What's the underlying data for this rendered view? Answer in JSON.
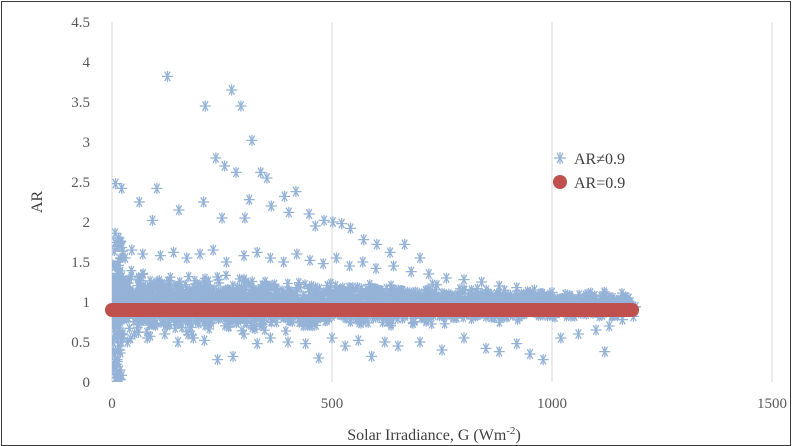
{
  "chart_data": {
    "type": "scatter",
    "title": "",
    "xlabel": "Solar Irradiance, G (Wm",
    "xlabel_sup": "-2",
    "xlabel_end": ")",
    "ylabel": "AR",
    "xlim": [
      0,
      1500
    ],
    "ylim": [
      0,
      4.5
    ],
    "x_ticks": [
      0,
      500,
      1000,
      1500
    ],
    "y_ticks": [
      0,
      0.5,
      1,
      1.5,
      2,
      2.5,
      3,
      3.5,
      4,
      4.5
    ],
    "y_tick_labels": [
      "0",
      "0.5",
      "1",
      "1.5",
      "2",
      "2.5",
      "3",
      "3.5",
      "4",
      "4.5"
    ],
    "grid": "vertical",
    "legend_position": "right",
    "series": [
      {
        "name": "AR≠0.9",
        "marker": "asterisk",
        "color": "#95b3d7",
        "points": [
          [
            126,
            3.82
          ],
          [
            272,
            3.65
          ],
          [
            212,
            3.45
          ],
          [
            293,
            3.45
          ],
          [
            318,
            3.02
          ],
          [
            236,
            2.8
          ],
          [
            256,
            2.7
          ],
          [
            282,
            2.62
          ],
          [
            338,
            2.62
          ],
          [
            352,
            2.55
          ],
          [
            8,
            2.48
          ],
          [
            22,
            2.42
          ],
          [
            102,
            2.42
          ],
          [
            418,
            2.38
          ],
          [
            392,
            2.32
          ],
          [
            312,
            2.28
          ],
          [
            208,
            2.25
          ],
          [
            62,
            2.25
          ],
          [
            152,
            2.15
          ],
          [
            362,
            2.2
          ],
          [
            402,
            2.12
          ],
          [
            448,
            2.1
          ],
          [
            302,
            2.05
          ],
          [
            250,
            2.05
          ],
          [
            92,
            2.02
          ],
          [
            482,
            2.02
          ],
          [
            502,
            2.0
          ],
          [
            522,
            1.98
          ],
          [
            462,
            1.95
          ],
          [
            542,
            1.92
          ],
          [
            572,
            1.78
          ],
          [
            602,
            1.72
          ],
          [
            665,
            1.72
          ],
          [
            632,
            1.62
          ],
          [
            700,
            1.55
          ],
          [
            7,
            1.86
          ],
          [
            15,
            1.8
          ],
          [
            12,
            1.7
          ],
          [
            30,
            1.55
          ],
          [
            45,
            1.65
          ],
          [
            70,
            1.6
          ],
          [
            110,
            1.58
          ],
          [
            140,
            1.62
          ],
          [
            170,
            1.55
          ],
          [
            200,
            1.6
          ],
          [
            230,
            1.65
          ],
          [
            260,
            1.5
          ],
          [
            300,
            1.58
          ],
          [
            330,
            1.62
          ],
          [
            360,
            1.55
          ],
          [
            390,
            1.5
          ],
          [
            420,
            1.6
          ],
          [
            450,
            1.52
          ],
          [
            480,
            1.48
          ],
          [
            510,
            1.55
          ],
          [
            540,
            1.45
          ],
          [
            570,
            1.5
          ],
          [
            600,
            1.42
          ],
          [
            640,
            1.45
          ],
          [
            680,
            1.38
          ],
          [
            720,
            1.35
          ],
          [
            760,
            1.3
          ],
          [
            800,
            1.28
          ],
          [
            840,
            1.25
          ],
          [
            880,
            1.2
          ],
          [
            920,
            1.18
          ],
          [
            960,
            1.15
          ],
          [
            1000,
            1.12
          ],
          [
            1040,
            1.08
          ],
          [
            1080,
            1.06
          ],
          [
            1120,
            1.1
          ],
          [
            1150,
            1.0
          ],
          [
            1170,
            0.97
          ],
          [
            1190,
            0.94
          ],
          [
            5,
            0.2
          ],
          [
            8,
            0.05
          ],
          [
            10,
            0.1
          ],
          [
            5,
            0.35
          ],
          [
            12,
            0.28
          ],
          [
            15,
            0.45
          ],
          [
            18,
            0.4
          ],
          [
            25,
            0.55
          ],
          [
            20,
            0.6
          ],
          [
            35,
            0.5
          ],
          [
            60,
            0.62
          ],
          [
            80,
            0.55
          ],
          [
            120,
            0.6
          ],
          [
            150,
            0.5
          ],
          [
            185,
            0.55
          ],
          [
            210,
            0.52
          ],
          [
            240,
            0.28
          ],
          [
            275,
            0.32
          ],
          [
            300,
            0.6
          ],
          [
            330,
            0.48
          ],
          [
            360,
            0.55
          ],
          [
            400,
            0.5
          ],
          [
            440,
            0.48
          ],
          [
            470,
            0.3
          ],
          [
            500,
            0.55
          ],
          [
            530,
            0.45
          ],
          [
            560,
            0.52
          ],
          [
            590,
            0.32
          ],
          [
            620,
            0.5
          ],
          [
            650,
            0.45
          ],
          [
            700,
            0.5
          ],
          [
            750,
            0.4
          ],
          [
            800,
            0.55
          ],
          [
            850,
            0.42
          ],
          [
            880,
            0.38
          ],
          [
            920,
            0.48
          ],
          [
            950,
            0.35
          ],
          [
            980,
            0.28
          ],
          [
            1020,
            0.55
          ],
          [
            1060,
            0.6
          ],
          [
            1100,
            0.65
          ],
          [
            1130,
            0.7
          ],
          [
            1160,
            0.78
          ],
          [
            1185,
            0.82
          ],
          [
            1120,
            0.38
          ]
        ]
      },
      {
        "name": "AR=0.9",
        "marker": "circle",
        "color": "#c0504d",
        "value": 0.9,
        "x_range": [
          0,
          1185
        ]
      }
    ]
  }
}
